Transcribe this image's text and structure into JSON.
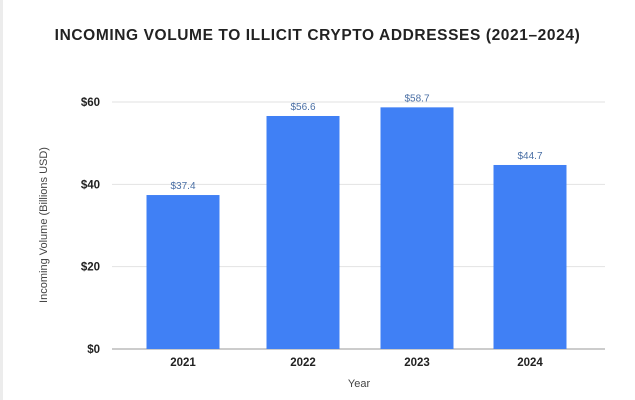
{
  "chart_data": {
    "type": "bar",
    "title": "INCOMING VOLUME TO ILLICIT CRYPTO ADDRESSES (2021–2024)",
    "xlabel": "Year",
    "ylabel": "Incoming Volume (Billions USD)",
    "categories": [
      "2021",
      "2022",
      "2023",
      "2024"
    ],
    "values": [
      37.4,
      56.6,
      58.7,
      44.7
    ],
    "data_labels": [
      "$37.4",
      "$56.6",
      "$58.7",
      "$44.7"
    ],
    "ylim": [
      0,
      60
    ],
    "yticks": [
      0,
      20,
      40,
      60
    ],
    "ytick_labels": [
      "$0",
      "$20",
      "$40",
      "$60"
    ],
    "grid": true,
    "bar_color": "#4080f5",
    "label_color": "#4a6fa5"
  }
}
